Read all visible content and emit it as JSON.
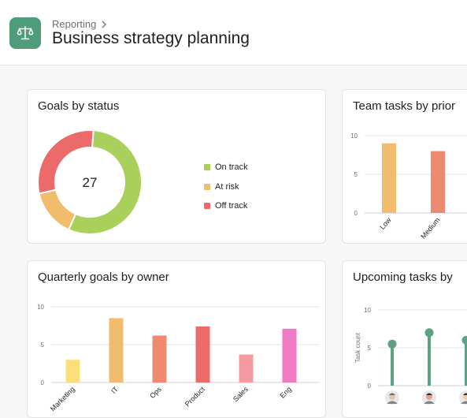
{
  "header": {
    "breadcrumb": "Reporting",
    "title": "Business strategy planning",
    "icon": "scale-icon",
    "icon_color": "#4f9c7a"
  },
  "cards": {
    "goals_status": {
      "title": "Goals by status"
    },
    "team_tasks": {
      "title": "Team tasks by prior"
    },
    "quarterly_goals": {
      "title": "Quarterly goals by owner"
    },
    "upcoming_tasks": {
      "title": "Upcoming tasks by"
    }
  },
  "chart_data": [
    {
      "type": "pie",
      "title": "Goals by status",
      "center_label": "27",
      "slices": [
        {
          "label": "On track",
          "value": 15,
          "color": "#a8d05a"
        },
        {
          "label": "At risk",
          "value": 4,
          "color": "#f1bd6c"
        },
        {
          "label": "Off track",
          "value": 8,
          "color": "#ec6a6a"
        }
      ]
    },
    {
      "type": "bar",
      "title": "Team tasks by prior",
      "categories": [
        "Low",
        "Medium"
      ],
      "values": [
        9,
        8
      ],
      "colors": [
        "#f1bd6c",
        "#ee8a72"
      ],
      "ylim": [
        0,
        10
      ],
      "yticks": [
        0,
        5,
        10
      ]
    },
    {
      "type": "bar",
      "title": "Quarterly goals by owner",
      "categories": [
        "Marketing",
        "IT",
        "Ops",
        "Product",
        "Sales",
        "Eng"
      ],
      "values": [
        3,
        8.5,
        6.2,
        7.4,
        3.7,
        7.1
      ],
      "colors": [
        "#fbe07a",
        "#f1bd6c",
        "#ee8a72",
        "#ec6a6a",
        "#f59aa0",
        "#f17ac4"
      ],
      "ylim": [
        0,
        10
      ],
      "yticks": [
        0,
        5,
        10
      ]
    },
    {
      "type": "scatter",
      "title": "Upcoming tasks by",
      "ylabel": "Task count",
      "values": [
        5.5,
        7,
        6
      ],
      "color": "#5da283",
      "ylim": [
        0,
        10
      ],
      "yticks": [
        0,
        5,
        10
      ]
    }
  ]
}
